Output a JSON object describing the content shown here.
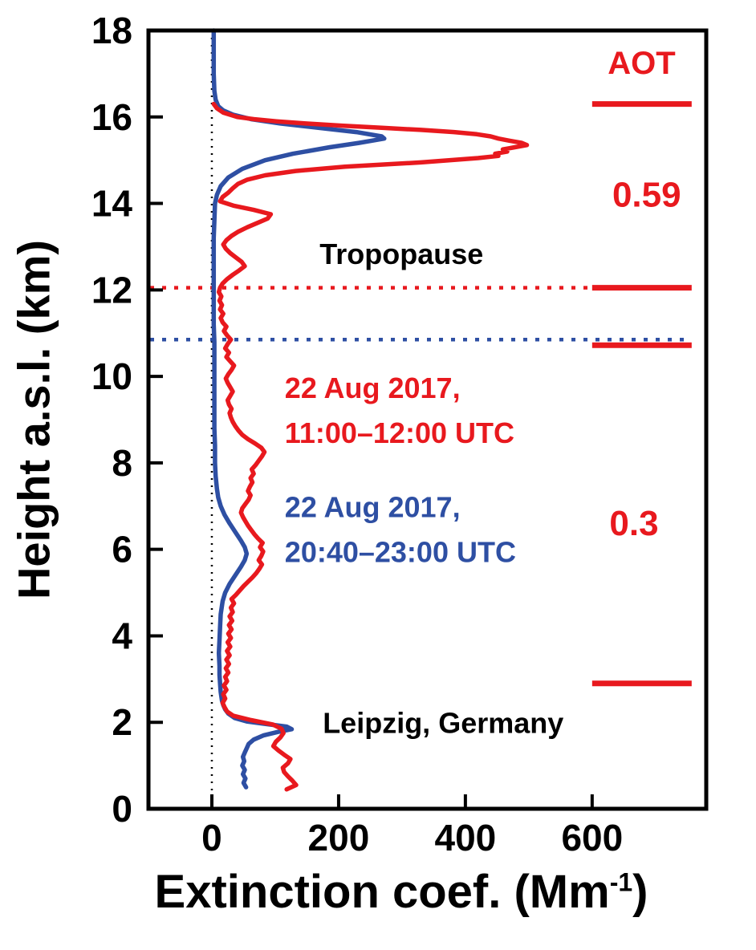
{
  "chart_data": {
    "type": "line",
    "title": "",
    "xlabel_main": "Extinction coef. (Mm",
    "xlabel_sup": "-1",
    "xlabel_end": ")",
    "ylabel": "Height a.s.l. (km)",
    "xlim": [
      -100,
      780
    ],
    "ylim": [
      0,
      18
    ],
    "x_ticks": [
      0,
      200,
      400,
      600
    ],
    "y_ticks": [
      0,
      2,
      4,
      6,
      8,
      10,
      12,
      14,
      16,
      18
    ],
    "zero_reference_x": 0,
    "grid": false,
    "colors": {
      "red": "#e8191e",
      "blue": "#2e4fa3",
      "black": "#000000"
    },
    "series": [
      {
        "id": "day",
        "color_key": "red",
        "label_lines": [
          "22 Aug 2017,",
          "11:00–12:00 UTC"
        ],
        "points": [
          [
            0.45,
            118
          ],
          [
            0.55,
            133
          ],
          [
            0.65,
            127
          ],
          [
            0.75,
            120
          ],
          [
            0.85,
            114
          ],
          [
            0.95,
            112
          ],
          [
            1.05,
            120
          ],
          [
            1.15,
            124
          ],
          [
            1.25,
            114
          ],
          [
            1.35,
            105
          ],
          [
            1.45,
            97
          ],
          [
            1.55,
            101
          ],
          [
            1.65,
            108
          ],
          [
            1.75,
            113
          ],
          [
            1.85,
            110
          ],
          [
            1.95,
            96
          ],
          [
            2.05,
            62
          ],
          [
            2.15,
            34
          ],
          [
            2.25,
            24
          ],
          [
            2.35,
            20
          ],
          [
            2.45,
            17
          ],
          [
            2.55,
            21
          ],
          [
            2.65,
            18
          ],
          [
            2.75,
            23
          ],
          [
            2.85,
            19
          ],
          [
            2.95,
            24
          ],
          [
            3.05,
            21
          ],
          [
            3.15,
            26
          ],
          [
            3.25,
            22
          ],
          [
            3.35,
            27
          ],
          [
            3.45,
            23
          ],
          [
            3.55,
            28
          ],
          [
            3.65,
            24
          ],
          [
            3.75,
            29
          ],
          [
            3.85,
            25
          ],
          [
            3.95,
            30
          ],
          [
            4.05,
            26
          ],
          [
            4.15,
            31
          ],
          [
            4.25,
            27
          ],
          [
            4.35,
            32
          ],
          [
            4.45,
            28
          ],
          [
            4.55,
            33
          ],
          [
            4.65,
            30
          ],
          [
            4.75,
            35
          ],
          [
            4.85,
            31
          ],
          [
            4.95,
            38
          ],
          [
            5.05,
            44
          ],
          [
            5.15,
            50
          ],
          [
            5.25,
            57
          ],
          [
            5.35,
            64
          ],
          [
            5.45,
            70
          ],
          [
            5.55,
            75
          ],
          [
            5.65,
            79
          ],
          [
            5.75,
            74
          ],
          [
            5.85,
            78
          ],
          [
            5.95,
            81
          ],
          [
            6.05,
            76
          ],
          [
            6.15,
            80
          ],
          [
            6.25,
            73
          ],
          [
            6.35,
            67
          ],
          [
            6.45,
            62
          ],
          [
            6.55,
            57
          ],
          [
            6.65,
            53
          ],
          [
            6.75,
            49
          ],
          [
            6.85,
            46
          ],
          [
            6.95,
            48
          ],
          [
            7.05,
            53
          ],
          [
            7.15,
            58
          ],
          [
            7.25,
            61
          ],
          [
            7.35,
            57
          ],
          [
            7.45,
            60
          ],
          [
            7.55,
            64
          ],
          [
            7.65,
            61
          ],
          [
            7.75,
            66
          ],
          [
            7.85,
            63
          ],
          [
            7.95,
            69
          ],
          [
            8.05,
            74
          ],
          [
            8.15,
            79
          ],
          [
            8.25,
            83
          ],
          [
            8.35,
            78
          ],
          [
            8.45,
            68
          ],
          [
            8.55,
            57
          ],
          [
            8.65,
            48
          ],
          [
            8.75,
            42
          ],
          [
            8.85,
            37
          ],
          [
            8.95,
            33
          ],
          [
            9.05,
            30
          ],
          [
            9.15,
            28
          ],
          [
            9.25,
            31
          ],
          [
            9.35,
            27
          ],
          [
            9.45,
            25
          ],
          [
            9.55,
            29
          ],
          [
            9.65,
            33
          ],
          [
            9.75,
            29
          ],
          [
            9.85,
            25
          ],
          [
            9.95,
            22
          ],
          [
            10.05,
            26
          ],
          [
            10.15,
            31
          ],
          [
            10.25,
            35
          ],
          [
            10.35,
            29
          ],
          [
            10.45,
            23
          ],
          [
            10.55,
            27
          ],
          [
            10.65,
            21
          ],
          [
            10.75,
            25
          ],
          [
            10.85,
            30
          ],
          [
            10.95,
            24
          ],
          [
            11.05,
            19
          ],
          [
            11.15,
            23
          ],
          [
            11.25,
            17
          ],
          [
            11.35,
            14
          ],
          [
            11.45,
            18
          ],
          [
            11.55,
            13
          ],
          [
            11.65,
            16
          ],
          [
            11.75,
            12
          ],
          [
            11.85,
            15
          ],
          [
            11.95,
            11
          ],
          [
            12.05,
            13
          ],
          [
            12.15,
            17
          ],
          [
            12.25,
            24
          ],
          [
            12.35,
            33
          ],
          [
            12.45,
            43
          ],
          [
            12.55,
            52
          ],
          [
            12.65,
            47
          ],
          [
            12.75,
            38
          ],
          [
            12.85,
            29
          ],
          [
            12.95,
            22
          ],
          [
            13.05,
            18
          ],
          [
            13.15,
            23
          ],
          [
            13.25,
            31
          ],
          [
            13.35,
            42
          ],
          [
            13.45,
            56
          ],
          [
            13.55,
            72
          ],
          [
            13.65,
            88
          ],
          [
            13.75,
            93
          ],
          [
            13.85,
            66
          ],
          [
            13.95,
            34
          ],
          [
            14.05,
            13
          ],
          [
            14.15,
            17
          ],
          [
            14.25,
            26
          ],
          [
            14.35,
            33
          ],
          [
            14.45,
            41
          ],
          [
            14.55,
            56
          ],
          [
            14.65,
            84
          ],
          [
            14.75,
            132
          ],
          [
            14.85,
            210
          ],
          [
            14.95,
            330
          ],
          [
            15.05,
            420
          ],
          [
            15.1,
            452
          ],
          [
            15.15,
            447
          ],
          [
            15.2,
            466
          ],
          [
            15.25,
            459
          ],
          [
            15.3,
            478
          ],
          [
            15.35,
            497
          ],
          [
            15.4,
            489
          ],
          [
            15.45,
            470
          ],
          [
            15.5,
            452
          ],
          [
            15.55,
            440
          ],
          [
            15.6,
            418
          ],
          [
            15.65,
            382
          ],
          [
            15.7,
            330
          ],
          [
            15.75,
            268
          ],
          [
            15.8,
            205
          ],
          [
            15.85,
            148
          ],
          [
            15.9,
            102
          ],
          [
            15.95,
            66
          ],
          [
            16.0,
            40
          ],
          [
            16.1,
            18
          ],
          [
            16.2,
            8
          ],
          [
            16.3,
            3
          ]
        ]
      },
      {
        "id": "night",
        "color_key": "blue",
        "label_lines": [
          "22 Aug 2017,",
          "20:40–23:00 UTC"
        ],
        "points": [
          [
            0.5,
            54
          ],
          [
            0.6,
            50
          ],
          [
            0.7,
            53
          ],
          [
            0.8,
            49
          ],
          [
            0.9,
            52
          ],
          [
            1.0,
            48
          ],
          [
            1.1,
            51
          ],
          [
            1.2,
            49
          ],
          [
            1.3,
            52
          ],
          [
            1.4,
            55
          ],
          [
            1.5,
            58
          ],
          [
            1.6,
            66
          ],
          [
            1.7,
            82
          ],
          [
            1.78,
            105
          ],
          [
            1.84,
            126
          ],
          [
            1.9,
            118
          ],
          [
            1.96,
            86
          ],
          [
            2.02,
            55
          ],
          [
            2.1,
            36
          ],
          [
            2.2,
            26
          ],
          [
            2.3,
            21
          ],
          [
            2.4,
            18
          ],
          [
            2.5,
            16
          ],
          [
            2.7,
            14
          ],
          [
            2.9,
            13
          ],
          [
            3.1,
            12
          ],
          [
            3.3,
            12
          ],
          [
            3.6,
            11
          ],
          [
            3.9,
            12
          ],
          [
            4.2,
            13
          ],
          [
            4.5,
            14
          ],
          [
            4.8,
            17
          ],
          [
            5.0,
            21
          ],
          [
            5.2,
            28
          ],
          [
            5.4,
            37
          ],
          [
            5.6,
            46
          ],
          [
            5.75,
            52
          ],
          [
            5.9,
            55
          ],
          [
            6.05,
            52
          ],
          [
            6.2,
            46
          ],
          [
            6.4,
            37
          ],
          [
            6.6,
            28
          ],
          [
            6.8,
            20
          ],
          [
            7.0,
            14
          ],
          [
            7.2,
            10
          ],
          [
            7.4,
            8
          ],
          [
            7.7,
            6
          ],
          [
            8.0,
            5
          ],
          [
            8.4,
            5
          ],
          [
            8.8,
            4
          ],
          [
            9.2,
            4
          ],
          [
            9.6,
            4
          ],
          [
            10.0,
            4
          ],
          [
            10.4,
            4
          ],
          [
            10.8,
            4
          ],
          [
            11.2,
            3
          ],
          [
            11.6,
            3
          ],
          [
            12.0,
            3
          ],
          [
            12.4,
            3
          ],
          [
            12.8,
            3
          ],
          [
            13.2,
            3
          ],
          [
            13.6,
            4
          ],
          [
            14.0,
            5
          ],
          [
            14.2,
            8
          ],
          [
            14.4,
            14
          ],
          [
            14.6,
            26
          ],
          [
            14.8,
            48
          ],
          [
            15.0,
            84
          ],
          [
            15.15,
            128
          ],
          [
            15.3,
            186
          ],
          [
            15.4,
            232
          ],
          [
            15.5,
            272
          ],
          [
            15.55,
            268
          ],
          [
            15.65,
            228
          ],
          [
            15.75,
            168
          ],
          [
            15.85,
            108
          ],
          [
            15.95,
            62
          ],
          [
            16.05,
            34
          ],
          [
            16.15,
            18
          ],
          [
            16.25,
            10
          ],
          [
            16.4,
            6
          ],
          [
            16.6,
            4
          ],
          [
            17.0,
            3
          ],
          [
            17.4,
            3
          ],
          [
            18.0,
            3
          ]
        ]
      }
    ],
    "series_label_anchors": [
      {
        "series": 0,
        "x": 115,
        "height_km": 9.5
      },
      {
        "series": 1,
        "x": 115,
        "height_km": 6.75
      }
    ],
    "tropopause": {
      "label": "Tropopause",
      "label_anchor": {
        "x": 170,
        "height_km": 12.6
      },
      "lines": [
        {
          "color_key": "red",
          "height_km": 12.05
        },
        {
          "color_key": "blue",
          "height_km": 10.85
        }
      ]
    },
    "location": {
      "label": "Leipzig, Germany",
      "anchor": {
        "x": 175,
        "height_km": 1.75
      }
    },
    "aot": {
      "header": "AOT",
      "header_anchor": {
        "x": 678,
        "height_km": 17.0
      },
      "bar_span_x": [
        600,
        757
      ],
      "bar_heights_km": [
        16.3,
        12.05,
        10.72,
        2.9
      ],
      "values": [
        {
          "label": "0.59",
          "anchor": {
            "x": 686,
            "height_km": 14.2
          }
        },
        {
          "label": "0.3",
          "anchor": {
            "x": 666,
            "height_km": 6.6
          }
        }
      ]
    }
  }
}
